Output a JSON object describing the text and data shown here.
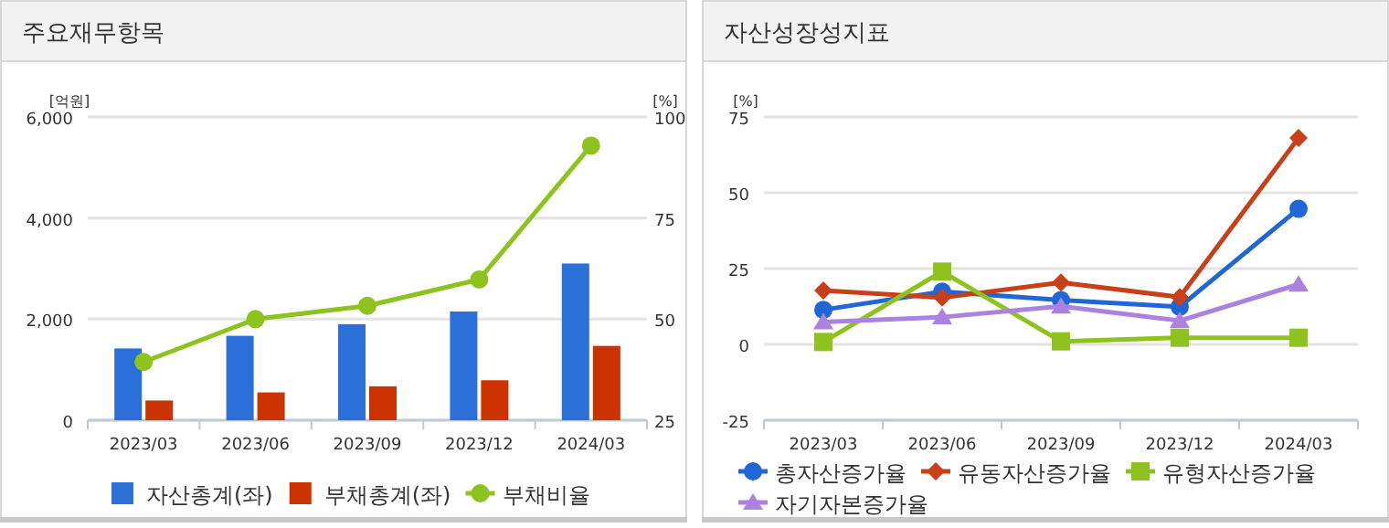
{
  "chart_data": [
    {
      "type": "bar",
      "title": "주요재무항목",
      "ylabel": "[억원]",
      "y2label": "[%]",
      "categories": [
        "2023/03",
        "2023/06",
        "2023/09",
        "2023/12",
        "2024/03"
      ],
      "series": [
        {
          "name": "자산총계(좌)",
          "color": "#2b6fd8",
          "values": [
            1420,
            1670,
            1900,
            2150,
            3100
          ]
        },
        {
          "name": "부채총계(좌)",
          "color": "#cc3300",
          "values": [
            390,
            550,
            670,
            790,
            1470
          ]
        },
        {
          "name": "부채비율",
          "type": "line",
          "axis": "y2",
          "marker": "circle",
          "color": "#8dc21f",
          "values": [
            39.4,
            50,
            53.3,
            59.8,
            92.9
          ]
        }
      ],
      "ylim": [
        0,
        6000
      ],
      "yticks": [
        0,
        {
          "value": 2000,
          "label": "2,000"
        },
        {
          "value": 4000,
          "label": "4,000"
        },
        {
          "value": 6000,
          "label": "6,000"
        }
      ],
      "y2lim": [
        25,
        100
      ],
      "y2ticks": [
        25,
        50,
        75,
        100
      ],
      "grid": "y",
      "legend": "bottom"
    },
    {
      "type": "line",
      "title": "자산성장성지표",
      "ylabel": "[%]",
      "categories": [
        "2023/03",
        "2023/06",
        "2023/09",
        "2023/12",
        "2024/03"
      ],
      "series": [
        {
          "name": "총자산증가율",
          "marker": "circle",
          "color": "#2166d6",
          "values": [
            11.4,
            17.4,
            14.6,
            12.4,
            44.7
          ]
        },
        {
          "name": "유동자산증가율",
          "marker": "diamond",
          "color": "#c8401a",
          "values": [
            17.8,
            15.4,
            20.4,
            15.6,
            68.1
          ]
        },
        {
          "name": "유형자산증가율",
          "marker": "square",
          "color": "#8dc21f",
          "values": [
            0.8,
            24.0,
            1.0,
            2.2,
            2.2
          ]
        },
        {
          "name": "자기자본증가율",
          "marker": "triangle",
          "color": "#ab82e0",
          "values": [
            7.4,
            9.0,
            12.6,
            7.8,
            19.8
          ]
        }
      ],
      "ylim": [
        -25,
        75
      ],
      "yticks": [
        -25,
        0,
        25,
        50,
        75
      ],
      "grid": "y",
      "legend": "bottom"
    }
  ]
}
